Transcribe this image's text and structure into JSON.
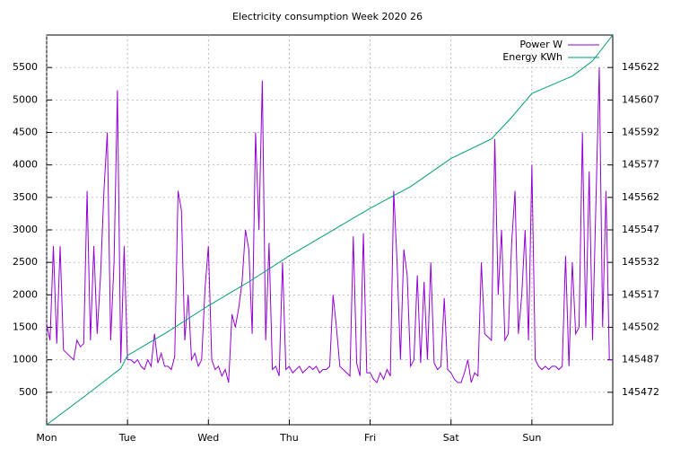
{
  "chart_data": {
    "type": "line",
    "title": "Electricity consumption Week 2020 26",
    "xlim": [
      0,
      168
    ],
    "xticks": [
      {
        "value": 0,
        "label": "Mon"
      },
      {
        "value": 24,
        "label": "Tue"
      },
      {
        "value": 48,
        "label": "Wed"
      },
      {
        "value": 72,
        "label": "Thu"
      },
      {
        "value": 96,
        "label": "Fri"
      },
      {
        "value": 120,
        "label": "Sat"
      },
      {
        "value": 144,
        "label": "Sun"
      }
    ],
    "ylim": [
      0,
      6000
    ],
    "yticks": [
      500,
      1000,
      1500,
      2000,
      2500,
      3000,
      3500,
      4000,
      4500,
      5000,
      5500
    ],
    "y2lim": [
      145457,
      145637
    ],
    "y2ticks": [
      145472,
      145487,
      145502,
      145517,
      145532,
      145547,
      145562,
      145577,
      145592,
      145607,
      145622
    ],
    "grid": true,
    "legend": "top-right",
    "series": [
      {
        "name": "Power W",
        "color": "#9400d3",
        "x": [
          0,
          1,
          2,
          3,
          4,
          5,
          6,
          7,
          8,
          9,
          10,
          11,
          12,
          13,
          14,
          15,
          16,
          17,
          18,
          19,
          20,
          21,
          22,
          23,
          24,
          25,
          26,
          27,
          28,
          29,
          30,
          31,
          32,
          33,
          34,
          35,
          36,
          37,
          38,
          39,
          40,
          41,
          42,
          43,
          44,
          45,
          46,
          47,
          48,
          49,
          50,
          51,
          52,
          53,
          54,
          55,
          56,
          57,
          58,
          59,
          60,
          61,
          62,
          63,
          64,
          65,
          66,
          67,
          68,
          69,
          70,
          71,
          72,
          73,
          74,
          75,
          76,
          77,
          78,
          79,
          80,
          81,
          82,
          83,
          84,
          85,
          86,
          87,
          88,
          89,
          90,
          91,
          92,
          93,
          94,
          95,
          96,
          97,
          98,
          99,
          100,
          101,
          102,
          103,
          104,
          105,
          106,
          107,
          108,
          109,
          110,
          111,
          112,
          113,
          114,
          115,
          116,
          117,
          118,
          119,
          120,
          121,
          122,
          123,
          124,
          125,
          126,
          127,
          128,
          129,
          130,
          131,
          132,
          133,
          134,
          135,
          136,
          137,
          138,
          139,
          140,
          141,
          142,
          143,
          144,
          145,
          146,
          147,
          148,
          149,
          150,
          151,
          152,
          153,
          154,
          155,
          156,
          157,
          158,
          159,
          160,
          161,
          162,
          163,
          164,
          165,
          166,
          167,
          168
        ],
        "values": [
          1550,
          1300,
          2750,
          1250,
          2750,
          1150,
          1100,
          1050,
          1000,
          1300,
          1200,
          1250,
          3600,
          1300,
          2750,
          1400,
          2300,
          3600,
          4500,
          1300,
          2500,
          5150,
          950,
          2750,
          1000,
          1000,
          950,
          1000,
          900,
          850,
          1000,
          900,
          1400,
          950,
          1100,
          900,
          900,
          850,
          1050,
          3600,
          3300,
          1300,
          2000,
          1000,
          1100,
          900,
          1000,
          2100,
          2750,
          1000,
          850,
          900,
          750,
          850,
          650,
          1700,
          1500,
          1800,
          2200,
          3000,
          2700,
          1400,
          4500,
          3000,
          5300,
          1300,
          2800,
          850,
          900,
          750,
          2500,
          850,
          900,
          800,
          850,
          900,
          800,
          850,
          900,
          850,
          900,
          800,
          850,
          850,
          900,
          2000,
          1500,
          900,
          850,
          800,
          750,
          2900,
          950,
          750,
          2950,
          800,
          800,
          700,
          650,
          800,
          700,
          850,
          750,
          3600,
          2500,
          1000,
          2700,
          2300,
          900,
          1000,
          2300,
          950,
          2200,
          1000,
          2500,
          950,
          850,
          900,
          1950,
          850,
          800,
          700,
          650,
          650,
          800,
          1000,
          650,
          800,
          750,
          2500,
          1400,
          1350,
          1300,
          4400,
          2000,
          3000,
          1300,
          1400,
          2800,
          3600,
          1400,
          2000,
          3000,
          1300,
          4000,
          1000,
          900,
          850,
          900,
          850,
          900,
          900,
          850,
          900,
          2600,
          900,
          2500,
          1400,
          1500,
          4500,
          1500,
          3900,
          1300,
          3400,
          5500,
          1500,
          3600,
          1000,
          1000
        ]
      },
      {
        "name": "Energy KWh",
        "color": "#009e73",
        "axis": "y2",
        "x": [
          0,
          12,
          22,
          24,
          36,
          48,
          60,
          72,
          84,
          96,
          108,
          120,
          132,
          138,
          144,
          156,
          162,
          168
        ],
        "values": [
          145457,
          145471,
          145483,
          145489,
          145500,
          145512,
          145523,
          145535,
          145546,
          145557,
          145567,
          145580,
          145589,
          145599,
          145610,
          145618,
          145625,
          145637
        ]
      }
    ]
  }
}
